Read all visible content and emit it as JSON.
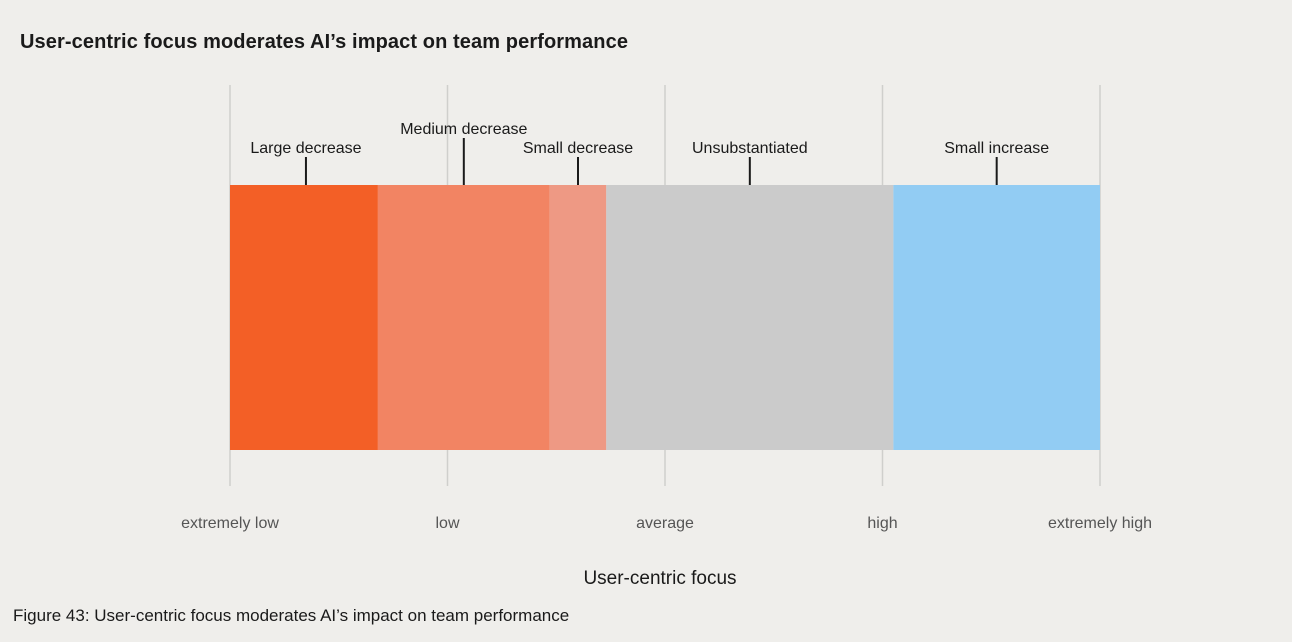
{
  "chart_data": {
    "type": "bar",
    "title": "User-centric focus moderates AI’s impact on team performance",
    "xlabel": "User-centric focus",
    "ylabel": "",
    "tick_labels": [
      "extremely low",
      "low",
      "average",
      "high",
      "extremely high"
    ],
    "xlim": [
      0,
      4
    ],
    "grid": true,
    "segments": [
      {
        "label": "Large decrease",
        "start": 0.0,
        "end": 0.68,
        "color": "#f35f26"
      },
      {
        "label": "Medium decrease",
        "start": 0.68,
        "end": 1.47,
        "color": "#f28463"
      },
      {
        "label": "Small decrease",
        "start": 1.47,
        "end": 1.73,
        "color": "#ee9984"
      },
      {
        "label": "Unsubstantiated",
        "start": 1.73,
        "end": 3.05,
        "color": "#cbcbcb"
      },
      {
        "label": "Small increase",
        "start": 3.05,
        "end": 4.0,
        "color": "#92ccf3"
      }
    ]
  },
  "caption": "Figure 43: User-centric focus moderates AI’s impact on team performance"
}
